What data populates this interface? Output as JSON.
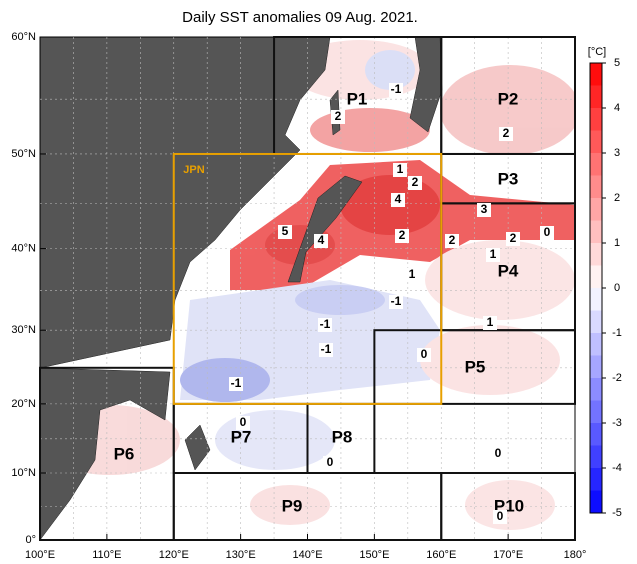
{
  "title": "Daily SST anomalies 09 Aug. 2021.",
  "map": {
    "xlim": [
      100,
      180
    ],
    "ylim": [
      0,
      60
    ],
    "xticks": [
      {
        "value": 100,
        "label": "100°E"
      },
      {
        "value": 110,
        "label": "110°E"
      },
      {
        "value": 120,
        "label": "120°E"
      },
      {
        "value": 130,
        "label": "130°E"
      },
      {
        "value": 140,
        "label": "140°E"
      },
      {
        "value": 150,
        "label": "150°E"
      },
      {
        "value": 160,
        "label": "160°E"
      },
      {
        "value": 170,
        "label": "170°E"
      },
      {
        "value": 180,
        "label": "180°"
      }
    ],
    "yticks": [
      {
        "value": 0,
        "label": "0°"
      },
      {
        "value": 10,
        "label": "10°N"
      },
      {
        "value": 20,
        "label": "20°N"
      },
      {
        "value": 30,
        "label": "30°N"
      },
      {
        "value": 40,
        "label": "40°N"
      },
      {
        "value": 50,
        "label": "50°N"
      },
      {
        "value": 60,
        "label": "60°N"
      }
    ]
  },
  "colorbar": {
    "unit": "[°C]",
    "range": [
      -5,
      5
    ],
    "ticks": [
      5,
      4,
      3,
      2,
      1,
      0,
      -1,
      -2,
      -3,
      -4,
      -5
    ]
  },
  "regions": [
    "P1",
    "P2",
    "P3",
    "P4",
    "P5",
    "P6",
    "P7",
    "P8",
    "P9",
    "P10",
    "JPN"
  ],
  "contour_labels": [
    "-1",
    "2",
    "2",
    "1",
    "2",
    "4",
    "3",
    "5",
    "4",
    "2",
    "2",
    "1",
    "2",
    "0",
    "1",
    "-1",
    "-1",
    "-1",
    "0",
    "1",
    "-1",
    "0",
    "0",
    "0",
    "0"
  ]
}
